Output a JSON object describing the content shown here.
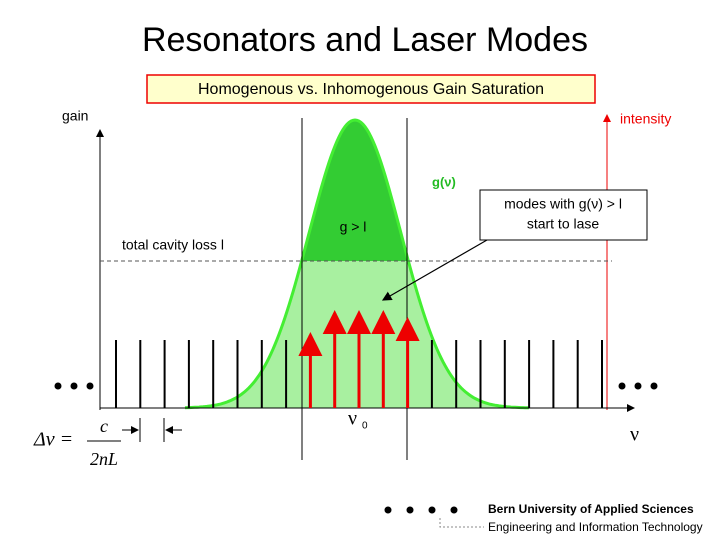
{
  "title": "Resonators and Laser Modes",
  "subtitle": "Homogenous vs. Inhomogenous Gain Saturation",
  "axes": {
    "gain": "gain",
    "intensity": "intensity",
    "frequency": "ν"
  },
  "curve_label": "g(ν)",
  "annotation": {
    "line1": "modes with g(ν) > l",
    "line2": "start to lase"
  },
  "gain_label": "g > l",
  "loss_label": "total cavity loss l",
  "center_frequency": {
    "symbol": "ν",
    "subscript": "0"
  },
  "formula": {
    "lhs": "Δν =",
    "numerator": "c",
    "denominator": "2nL"
  },
  "footer": {
    "line1": "Bern University of Applied Sciences",
    "line2": "Engineering and Information Technology"
  }
}
